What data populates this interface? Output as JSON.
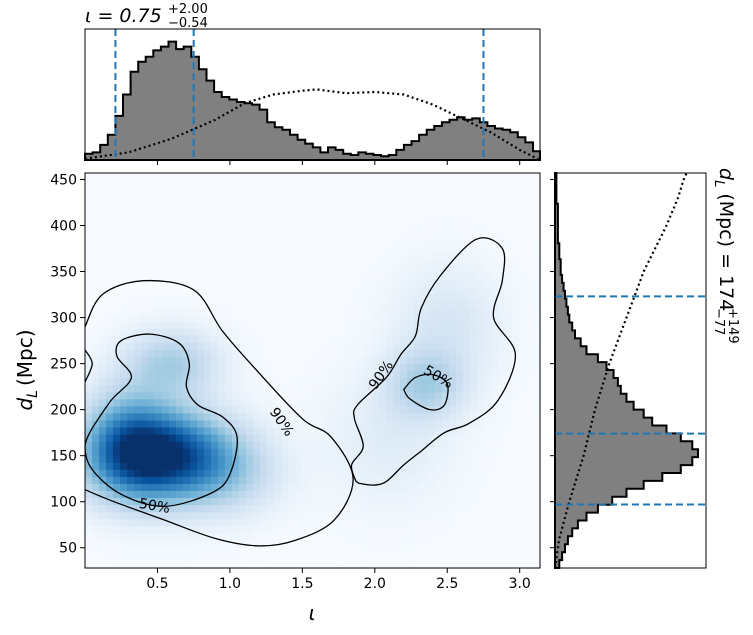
{
  "chart_data": {
    "type": "heatmap",
    "subtype": "corner plot (2D KDE + marginal histograms)",
    "colormap": "Blues",
    "x_label": "ι",
    "y_label_main": "d",
    "y_label_sub": "L",
    "y_label_unit": "(Mpc)",
    "xlim": [
      0.0,
      3.14
    ],
    "ylim": [
      28,
      457
    ],
    "x_ticks": [
      0.5,
      1.0,
      1.5,
      2.0,
      2.5,
      3.0
    ],
    "x_tick_labels": [
      "0.5",
      "1.0",
      "1.5",
      "2.0",
      "2.5",
      "3.0"
    ],
    "y_ticks": [
      50,
      100,
      150,
      200,
      250,
      300,
      350,
      400,
      450
    ],
    "y_tick_labels": [
      "50",
      "100",
      "150",
      "200",
      "250",
      "300",
      "350",
      "400",
      "450"
    ],
    "top_title": {
      "prefix": "ι = 0.75",
      "plus": "+2.00",
      "minus": "−0.54",
      "median": 0.75,
      "interval": [
        0.21,
        2.75
      ]
    },
    "right_title": {
      "prefix": "d",
      "sub": "L",
      "middle": " (Mpc) = 174",
      "plus": "+149",
      "minus": "−77",
      "median": 174,
      "interval": [
        97,
        323
      ]
    },
    "contour_labels": [
      {
        "text": "50%",
        "x": 0.48,
        "y": 96,
        "angle": 10
      },
      {
        "text": "90%",
        "x": 1.36,
        "y": 187,
        "angle": 55
      },
      {
        "text": "90%",
        "x": 2.04,
        "y": 238,
        "angle": -55
      },
      {
        "text": "50%",
        "x": 2.44,
        "y": 236,
        "angle": 30
      }
    ],
    "density_peaks": [
      {
        "x": 0.52,
        "y": 150,
        "sx": 0.32,
        "sy": 32,
        "w": 1.0
      },
      {
        "x": 0.3,
        "y": 170,
        "sx": 0.2,
        "sy": 40,
        "w": 0.35
      },
      {
        "x": 0.6,
        "y": 250,
        "sx": 0.22,
        "sy": 25,
        "w": 0.28
      },
      {
        "x": 1.0,
        "y": 130,
        "sx": 0.25,
        "sy": 30,
        "w": 0.18
      },
      {
        "x": 2.35,
        "y": 228,
        "sx": 0.18,
        "sy": 25,
        "w": 0.25
      },
      {
        "x": 2.5,
        "y": 290,
        "sx": 0.25,
        "sy": 45,
        "w": 0.12
      },
      {
        "x": 2.1,
        "y": 170,
        "sx": 0.3,
        "sy": 50,
        "w": 0.08
      }
    ],
    "contour_90_outer": [
      [
        0.0,
        290
      ],
      [
        0.12,
        325
      ],
      [
        0.4,
        340
      ],
      [
        0.75,
        330
      ],
      [
        0.95,
        285
      ],
      [
        1.2,
        240
      ],
      [
        1.5,
        190
      ],
      [
        1.7,
        170
      ],
      [
        1.85,
        125
      ],
      [
        1.72,
        80
      ],
      [
        1.45,
        58
      ],
      [
        1.2,
        52
      ],
      [
        0.9,
        60
      ],
      [
        0.55,
        80
      ],
      [
        0.2,
        100
      ],
      [
        0.0,
        113
      ]
    ],
    "contour_90_bottom_left_stub": [
      [
        0.0,
        265
      ],
      [
        0.05,
        250
      ],
      [
        0.0,
        230
      ]
    ],
    "contour_50_left": [
      [
        0.05,
        180
      ],
      [
        0.18,
        210
      ],
      [
        0.32,
        235
      ],
      [
        0.22,
        258
      ],
      [
        0.25,
        275
      ],
      [
        0.45,
        282
      ],
      [
        0.65,
        272
      ],
      [
        0.72,
        250
      ],
      [
        0.7,
        225
      ],
      [
        0.78,
        205
      ],
      [
        0.95,
        192
      ],
      [
        1.05,
        170
      ],
      [
        1.0,
        130
      ],
      [
        0.88,
        110
      ],
      [
        0.55,
        95
      ],
      [
        0.25,
        108
      ],
      [
        0.05,
        135
      ],
      [
        0.0,
        160
      ],
      [
        0.05,
        180
      ]
    ],
    "contour_90_right": [
      [
        1.87,
        122
      ],
      [
        1.84,
        140
      ],
      [
        1.92,
        160
      ],
      [
        1.86,
        190
      ],
      [
        1.88,
        205
      ],
      [
        2.08,
        235
      ],
      [
        2.18,
        260
      ],
      [
        2.28,
        280
      ],
      [
        2.32,
        310
      ],
      [
        2.45,
        345
      ],
      [
        2.7,
        385
      ],
      [
        2.88,
        375
      ],
      [
        2.88,
        340
      ],
      [
        2.82,
        300
      ],
      [
        2.97,
        260
      ],
      [
        2.85,
        210
      ],
      [
        2.65,
        185
      ],
      [
        2.48,
        175
      ],
      [
        2.32,
        155
      ],
      [
        2.2,
        140
      ],
      [
        2.08,
        122
      ],
      [
        1.99,
        118
      ],
      [
        1.89,
        120
      ]
    ],
    "contour_50_right": [
      [
        2.2,
        222
      ],
      [
        2.28,
        235
      ],
      [
        2.4,
        238
      ],
      [
        2.5,
        228
      ],
      [
        2.48,
        205
      ],
      [
        2.38,
        200
      ],
      [
        2.24,
        212
      ],
      [
        2.2,
        222
      ]
    ],
    "top_hist_posterior": {
      "bin_width": 0.0524,
      "heights": [
        0.05,
        0.06,
        0.12,
        0.2,
        0.35,
        0.52,
        0.7,
        0.78,
        0.82,
        0.87,
        0.9,
        0.94,
        0.88,
        0.9,
        0.82,
        0.72,
        0.63,
        0.54,
        0.5,
        0.48,
        0.46,
        0.45,
        0.44,
        0.4,
        0.3,
        0.26,
        0.24,
        0.2,
        0.16,
        0.13,
        0.1,
        0.06,
        0.1,
        0.08,
        0.05,
        0.04,
        0.06,
        0.05,
        0.04,
        0.03,
        0.04,
        0.08,
        0.12,
        0.15,
        0.2,
        0.24,
        0.27,
        0.3,
        0.32,
        0.34,
        0.32,
        0.33,
        0.3,
        0.27,
        0.25,
        0.24,
        0.22,
        0.18,
        0.14,
        0.07
      ]
    },
    "top_hist_prior": {
      "points": [
        [
          0.0,
          0.01
        ],
        [
          0.3,
          0.06
        ],
        [
          0.6,
          0.17
        ],
        [
          0.9,
          0.32
        ],
        [
          1.1,
          0.45
        ],
        [
          1.3,
          0.52
        ],
        [
          1.5,
          0.55
        ],
        [
          1.6,
          0.56
        ],
        [
          1.8,
          0.53
        ],
        [
          2.0,
          0.54
        ],
        [
          2.2,
          0.52
        ],
        [
          2.4,
          0.44
        ],
        [
          2.6,
          0.33
        ],
        [
          2.8,
          0.22
        ],
        [
          3.0,
          0.08
        ],
        [
          3.14,
          0.0
        ]
      ]
    },
    "right_hist_posterior": {
      "bin_width": 8.6,
      "bins": [
        [
          28,
          0.03
        ],
        [
          36.6,
          0.05
        ],
        [
          45.2,
          0.07
        ],
        [
          53.8,
          0.09
        ],
        [
          62.4,
          0.12
        ],
        [
          71.0,
          0.16
        ],
        [
          79.6,
          0.22
        ],
        [
          88.2,
          0.3
        ],
        [
          96.8,
          0.4
        ],
        [
          105.4,
          0.5
        ],
        [
          114.0,
          0.62
        ],
        [
          122.6,
          0.75
        ],
        [
          131.2,
          0.88
        ],
        [
          139.8,
          0.96
        ],
        [
          148.4,
          1.0
        ],
        [
          157.0,
          0.96
        ],
        [
          165.6,
          0.88
        ],
        [
          174.2,
          0.78
        ],
        [
          182.8,
          0.68
        ],
        [
          191.4,
          0.62
        ],
        [
          200.0,
          0.55
        ],
        [
          208.6,
          0.5
        ],
        [
          217.2,
          0.46
        ],
        [
          225.8,
          0.44
        ],
        [
          234.4,
          0.41
        ],
        [
          243.0,
          0.36
        ],
        [
          251.6,
          0.3
        ],
        [
          260.2,
          0.22
        ],
        [
          268.8,
          0.18
        ],
        [
          277.4,
          0.14
        ],
        [
          286.0,
          0.12
        ],
        [
          294.6,
          0.1
        ],
        [
          303.2,
          0.09
        ],
        [
          311.8,
          0.08
        ],
        [
          320.4,
          0.07
        ],
        [
          329.0,
          0.06
        ],
        [
          337.6,
          0.05
        ],
        [
          346.2,
          0.04
        ],
        [
          354.8,
          0.04
        ],
        [
          363.4,
          0.03
        ],
        [
          372.0,
          0.03
        ],
        [
          380.6,
          0.02
        ],
        [
          389.2,
          0.02
        ],
        [
          397.8,
          0.02
        ],
        [
          406.4,
          0.02
        ],
        [
          415.0,
          0.02
        ],
        [
          423.6,
          0.01
        ],
        [
          432.2,
          0.01
        ],
        [
          440.8,
          0.01
        ],
        [
          449.4,
          0.01
        ]
      ]
    },
    "right_hist_prior": {
      "points": [
        [
          28,
          0.0
        ],
        [
          60,
          0.03
        ],
        [
          100,
          0.1
        ],
        [
          150,
          0.2
        ],
        [
          200,
          0.28
        ],
        [
          250,
          0.38
        ],
        [
          300,
          0.5
        ],
        [
          350,
          0.62
        ],
        [
          400,
          0.78
        ],
        [
          430,
          0.86
        ],
        [
          450,
          0.9
        ],
        [
          457,
          0.92
        ]
      ]
    },
    "colors": {
      "hist_fill": "#808080",
      "hist_edge": "#000000",
      "ci_line": "#1f77b4",
      "contour": "#000000"
    }
  }
}
